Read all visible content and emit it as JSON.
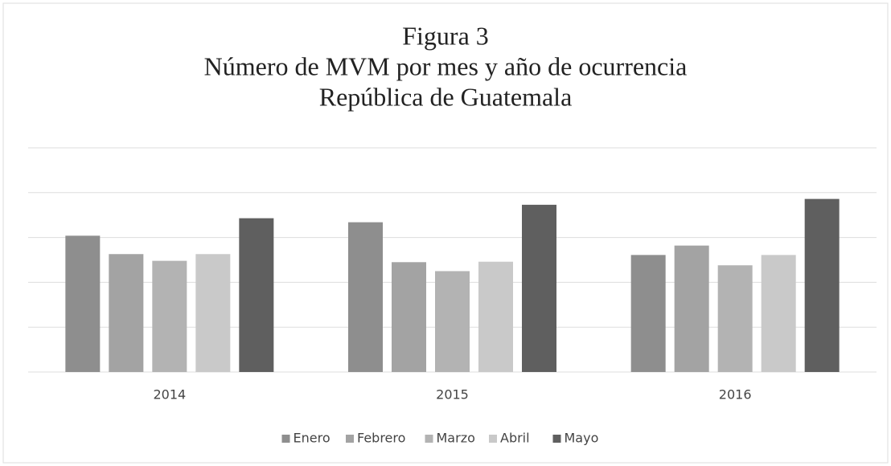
{
  "chart_data": {
    "type": "bar",
    "title": [
      "Figura 3",
      "Número de MVM por mes y año de ocurrencia",
      "República de Guatemala"
    ],
    "categories": [
      "2014",
      "2015",
      "2016"
    ],
    "series": [
      {
        "name": "Enero",
        "color": "#8e8e8e",
        "values": [
          3.04,
          3.34,
          2.61
        ]
      },
      {
        "name": "Febrero",
        "color": "#a3a3a3",
        "values": [
          2.63,
          2.45,
          2.82
        ]
      },
      {
        "name": "Marzo",
        "color": "#b3b3b3",
        "values": [
          2.48,
          2.25,
          2.38
        ]
      },
      {
        "name": "Abril",
        "color": "#c9c9c9",
        "values": [
          2.63,
          2.46,
          2.61
        ]
      },
      {
        "name": "Mayo",
        "color": "#5f5f5f",
        "values": [
          3.43,
          3.73,
          3.86
        ]
      }
    ],
    "ylim": [
      0,
      5
    ],
    "yticks": [
      0,
      1,
      2,
      3,
      4,
      5
    ],
    "grid": true,
    "legend": "bottom"
  }
}
